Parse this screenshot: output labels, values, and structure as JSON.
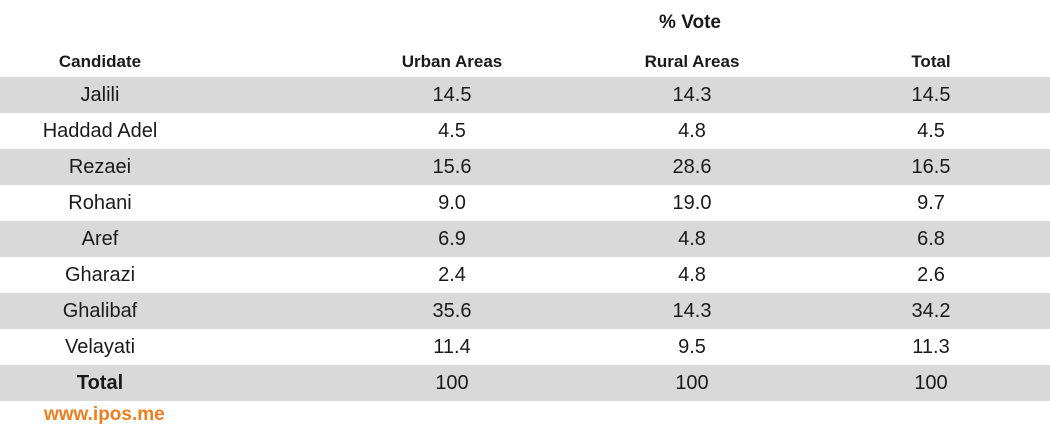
{
  "chart_data": {
    "type": "table",
    "group_header": "% Vote",
    "columns": [
      "Candidate",
      "Urban Areas",
      "Rural Areas",
      "Total"
    ],
    "rows": [
      {
        "candidate": "Jalili",
        "urban": "14.5",
        "rural": "14.3",
        "total": "14.5"
      },
      {
        "candidate": "Haddad Adel",
        "urban": "4.5",
        "rural": "4.8",
        "total": "4.5"
      },
      {
        "candidate": "Rezaei",
        "urban": "15.6",
        "rural": "28.6",
        "total": "16.5"
      },
      {
        "candidate": "Rohani",
        "urban": "9.0",
        "rural": "19.0",
        "total": "9.7"
      },
      {
        "candidate": "Aref",
        "urban": "6.9",
        "rural": "4.8",
        "total": "6.8"
      },
      {
        "candidate": "Gharazi",
        "urban": "2.4",
        "rural": "4.8",
        "total": "2.6"
      },
      {
        "candidate": "Ghalibaf",
        "urban": "35.6",
        "rural": "14.3",
        "total": "34.2"
      },
      {
        "candidate": "Velayati",
        "urban": "11.4",
        "rural": "9.5",
        "total": "11.3"
      },
      {
        "candidate": "Total",
        "urban": "100",
        "rural": "100",
        "total": "100"
      }
    ]
  },
  "footer": {
    "link_text": "www.ipos.me"
  },
  "colors": {
    "shaded_row": "#d9d9d9",
    "text": "#1a1a1a",
    "link": "#f07d1e"
  }
}
